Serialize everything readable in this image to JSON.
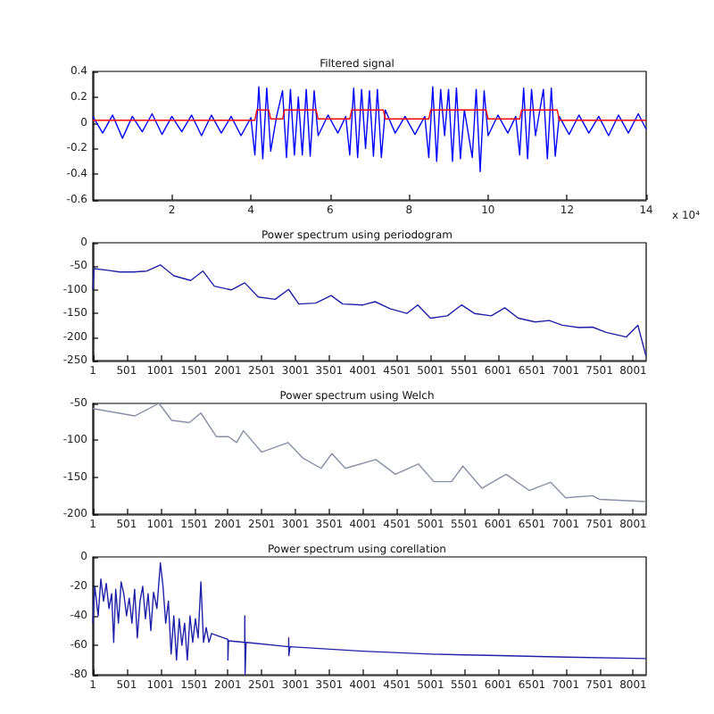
{
  "chart_data": [
    {
      "type": "line",
      "title": "Filtered signal",
      "annotations": [
        "x 10⁴"
      ],
      "xlim": [
        0,
        14
      ],
      "xticks": [
        2,
        4,
        6,
        8,
        10,
        12,
        14
      ],
      "ylim": [
        -0.6,
        0.4
      ],
      "yticks": [
        -0.6,
        -0.4,
        -0.2,
        0,
        0.2,
        0.4
      ],
      "series": [
        {
          "color": "#0000ff",
          "x": [
            0,
            0.25,
            0.5,
            0.75,
            1.0,
            1.25,
            1.5,
            1.75,
            2.0,
            2.25,
            2.5,
            2.75,
            3.0,
            3.25,
            3.5,
            3.75,
            4.0,
            4.1,
            4.2,
            4.3,
            4.4,
            4.5,
            4.65,
            4.8,
            4.9,
            5.0,
            5.1,
            5.2,
            5.3,
            5.4,
            5.5,
            5.6,
            5.7,
            5.95,
            6.2,
            6.4,
            6.5,
            6.6,
            6.7,
            6.8,
            6.9,
            7.0,
            7.1,
            7.2,
            7.3,
            7.4,
            7.65,
            7.9,
            8.15,
            8.4,
            8.5,
            8.6,
            8.7,
            8.8,
            8.9,
            9.0,
            9.1,
            9.2,
            9.3,
            9.4,
            9.6,
            9.7,
            9.8,
            9.9,
            10.0,
            10.25,
            10.5,
            10.7,
            10.8,
            10.9,
            11.0,
            11.1,
            11.2,
            11.4,
            11.5,
            11.6,
            11.7,
            11.8,
            12.05,
            12.3,
            12.55,
            12.8,
            13.05,
            13.3,
            13.55,
            13.8,
            14.0
          ],
          "values": [
            0.05,
            -0.08,
            0.06,
            -0.12,
            0.05,
            -0.07,
            0.07,
            -0.09,
            0.05,
            -0.07,
            0.06,
            -0.1,
            0.06,
            -0.08,
            0.05,
            -0.1,
            0.04,
            -0.25,
            0.28,
            -0.28,
            0.27,
            -0.22,
            0.05,
            0.25,
            -0.27,
            0.26,
            -0.25,
            0.2,
            -0.25,
            0.26,
            -0.26,
            0.25,
            -0.1,
            0.06,
            -0.08,
            0.05,
            -0.25,
            0.27,
            -0.27,
            0.26,
            -0.2,
            0.25,
            -0.26,
            0.26,
            -0.27,
            0.1,
            -0.08,
            0.05,
            -0.09,
            0.05,
            -0.27,
            0.28,
            -0.3,
            0.26,
            -0.1,
            0.26,
            -0.3,
            0.27,
            -0.28,
            0.1,
            -0.27,
            0.26,
            -0.38,
            0.25,
            -0.1,
            0.06,
            -0.08,
            0.05,
            -0.25,
            0.27,
            -0.28,
            0.26,
            -0.1,
            0.26,
            -0.28,
            0.27,
            -0.26,
            0.05,
            -0.09,
            0.06,
            -0.08,
            0.05,
            -0.1,
            0.06,
            -0.08,
            0.07,
            -0.05
          ]
        },
        {
          "color": "#ff0000",
          "x": [
            0,
            4.1,
            4.15,
            4.45,
            4.5,
            4.8,
            4.85,
            5.65,
            5.7,
            6.5,
            6.55,
            7.35,
            7.4,
            8.5,
            8.55,
            9.95,
            10.0,
            10.8,
            10.85,
            11.75,
            11.8,
            14
          ],
          "values": [
            0.02,
            0.02,
            0.1,
            0.1,
            0.03,
            0.03,
            0.1,
            0.1,
            0.03,
            0.03,
            0.1,
            0.1,
            0.03,
            0.03,
            0.1,
            0.1,
            0.03,
            0.03,
            0.1,
            0.1,
            0.02,
            0.02
          ]
        }
      ]
    },
    {
      "type": "line",
      "title": "Power spectrum using periodogram",
      "xlim": [
        1,
        8193
      ],
      "xticks": [
        1,
        501,
        1001,
        1501,
        2001,
        2501,
        3001,
        3501,
        4001,
        4501,
        5001,
        5501,
        6001,
        6501,
        7001,
        7501,
        8001
      ],
      "ylim": [
        -250,
        0
      ],
      "yticks": [
        -250,
        -200,
        -150,
        -100,
        -50,
        0
      ],
      "series": [
        {
          "color": "#2020a8",
          "x": [
            1,
            20,
            200,
            400,
            600,
            800,
            1001,
            1200,
            1450,
            1630,
            1800,
            2050,
            2250,
            2450,
            2700,
            2900,
            3050,
            3300,
            3530,
            3700,
            4000,
            4180,
            4400,
            4650,
            4810,
            5000,
            5250,
            5460,
            5650,
            5900,
            6100,
            6300,
            6550,
            6760,
            6950,
            7200,
            7400,
            7600,
            7900,
            8070,
            8190
          ],
          "values": [
            -100,
            -55,
            -58,
            -62,
            -62,
            -60,
            -47,
            -70,
            -80,
            -60,
            -92,
            -100,
            -85,
            -115,
            -120,
            -99,
            -130,
            -128,
            -112,
            -130,
            -132,
            -125,
            -140,
            -150,
            -132,
            -160,
            -155,
            -132,
            -150,
            -155,
            -138,
            -160,
            -168,
            -165,
            -175,
            -180,
            -179,
            -190,
            -200,
            -175,
            -240
          ]
        }
      ]
    },
    {
      "type": "line",
      "title": "Power spectrum using Welch",
      "xlim": [
        1,
        8193
      ],
      "xticks": [
        1,
        501,
        1001,
        1501,
        2001,
        2501,
        3001,
        3501,
        4001,
        4501,
        5001,
        5501,
        6001,
        6501,
        7001,
        7501,
        8001
      ],
      "ylim": [
        -200,
        -50
      ],
      "yticks": [
        -200,
        -150,
        -100,
        -50
      ],
      "series": [
        {
          "color": "#8890a8",
          "x": [
            1,
            620,
            980,
            1170,
            1430,
            1600,
            1830,
            2010,
            2130,
            2230,
            2500,
            2890,
            3110,
            3380,
            3540,
            3740,
            4190,
            4480,
            4820,
            5050,
            5310,
            5480,
            5760,
            6120,
            6460,
            6780,
            7000,
            7400,
            7500,
            8190
          ],
          "values": [
            -57,
            -67,
            -50,
            -73,
            -76,
            -63,
            -95,
            -95,
            -103,
            -87,
            -116,
            -103,
            -124,
            -138,
            -118,
            -138,
            -126,
            -146,
            -132,
            -156,
            -156,
            -135,
            -165,
            -146,
            -168,
            -157,
            -178,
            -175,
            -180,
            -183
          ]
        }
      ]
    },
    {
      "type": "line",
      "title": "Power spectrum using corellation",
      "xlim": [
        1,
        8193
      ],
      "xticks": [
        1,
        501,
        1001,
        1501,
        2001,
        2501,
        3001,
        3501,
        4001,
        4501,
        5001,
        5501,
        6001,
        6501,
        7001,
        7501,
        8001
      ],
      "ylim": [
        -80,
        0
      ],
      "yticks": [
        -80,
        -60,
        -40,
        -20,
        0
      ],
      "series": [
        {
          "color": "#2020a8",
          "x": [
            1,
            30,
            80,
            120,
            160,
            200,
            240,
            280,
            310,
            340,
            380,
            420,
            460,
            500,
            540,
            580,
            620,
            660,
            700,
            740,
            780,
            820,
            860,
            900,
            950,
            1001,
            1040,
            1080,
            1120,
            1160,
            1200,
            1240,
            1280,
            1320,
            1360,
            1400,
            1440,
            1480,
            1520,
            1560,
            1601,
            1640,
            1680,
            1720,
            1760,
            2000,
            2001,
            2010,
            2250,
            2251,
            2255,
            2270,
            2900,
            2901,
            2903,
            2920,
            4000,
            5000,
            6000,
            7000,
            8190
          ],
          "values": [
            -45,
            -20,
            -40,
            -15,
            -30,
            -18,
            -35,
            -25,
            -58,
            -22,
            -45,
            -17,
            -25,
            -40,
            -28,
            -45,
            -22,
            -55,
            -30,
            -20,
            -42,
            -25,
            -50,
            -24,
            -35,
            -4,
            -20,
            -45,
            -30,
            -66,
            -40,
            -70,
            -42,
            -60,
            -45,
            -70,
            -40,
            -58,
            -42,
            -55,
            -17,
            -58,
            -48,
            -58,
            -52,
            -56,
            -70,
            -57,
            -58,
            -40,
            -80,
            -58,
            -61,
            -55,
            -67,
            -61,
            -64,
            -66,
            -67,
            -68,
            -69
          ]
        }
      ]
    }
  ]
}
